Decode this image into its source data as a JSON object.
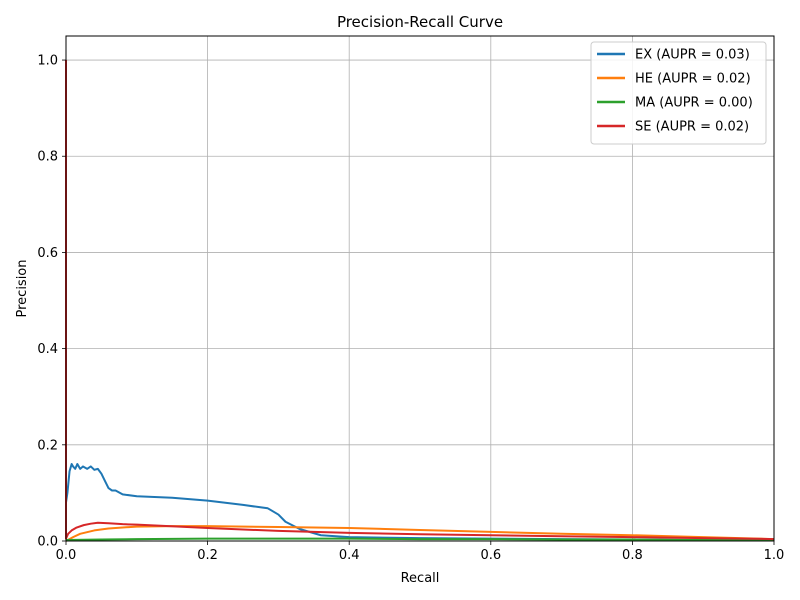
{
  "chart_data": {
    "type": "line",
    "title": "Precision-Recall Curve",
    "xlabel": "Recall",
    "ylabel": "Precision",
    "xlim": [
      0,
      1.0
    ],
    "ylim": [
      0,
      1.05
    ],
    "xticks": [
      "0.0",
      "0.2",
      "0.4",
      "0.6",
      "0.8",
      "1.0"
    ],
    "yticks": [
      "0.0",
      "0.2",
      "0.4",
      "0.6",
      "0.8",
      "1.0"
    ],
    "grid": true,
    "legend_position": "top-right",
    "series": [
      {
        "name": "EX (AUPR = 0.03)",
        "color": "#1f77b4",
        "x": [
          0,
          0,
          0.002,
          0.005,
          0.008,
          0.01,
          0.013,
          0.016,
          0.02,
          0.024,
          0.03,
          0.035,
          0.04,
          0.045,
          0.05,
          0.055,
          0.06,
          0.065,
          0.07,
          0.08,
          0.1,
          0.15,
          0.2,
          0.25,
          0.285,
          0.3,
          0.31,
          0.33,
          0.36,
          0.4,
          0.5,
          0.6,
          0.7,
          0.8,
          0.9,
          1.0
        ],
        "y": [
          1.0,
          0.08,
          0.1,
          0.145,
          0.16,
          0.155,
          0.15,
          0.16,
          0.15,
          0.155,
          0.15,
          0.155,
          0.148,
          0.15,
          0.14,
          0.125,
          0.11,
          0.105,
          0.105,
          0.097,
          0.093,
          0.09,
          0.084,
          0.075,
          0.068,
          0.055,
          0.04,
          0.025,
          0.012,
          0.008,
          0.006,
          0.005,
          0.004,
          0.003,
          0.002,
          0.002
        ]
      },
      {
        "name": "HE (AUPR = 0.02)",
        "color": "#ff7f0e",
        "x": [
          0,
          0.01,
          0.02,
          0.04,
          0.06,
          0.08,
          0.1,
          0.15,
          0.2,
          0.3,
          0.4,
          0.5,
          0.6,
          0.7,
          0.8,
          0.9,
          1.0
        ],
        "y": [
          0.0,
          0.008,
          0.015,
          0.022,
          0.026,
          0.028,
          0.03,
          0.031,
          0.031,
          0.029,
          0.027,
          0.023,
          0.019,
          0.015,
          0.012,
          0.008,
          0.004
        ]
      },
      {
        "name": "MA (AUPR = 0.00)",
        "color": "#2ca02c",
        "x": [
          0,
          0.05,
          0.1,
          0.2,
          0.3,
          0.4,
          0.5,
          0.6,
          0.7,
          0.8,
          0.9,
          1.0
        ],
        "y": [
          0.002,
          0.003,
          0.004,
          0.005,
          0.005,
          0.005,
          0.004,
          0.004,
          0.003,
          0.003,
          0.002,
          0.002
        ]
      },
      {
        "name": "SE (AUPR = 0.02)",
        "color": "#d62728",
        "x": [
          0,
          0,
          0.003,
          0.008,
          0.015,
          0.025,
          0.035,
          0.045,
          0.06,
          0.08,
          0.1,
          0.13,
          0.16,
          0.2,
          0.3,
          0.4,
          0.5,
          0.6,
          0.7,
          0.8,
          0.9,
          1.0
        ],
        "y": [
          1.0,
          0.005,
          0.015,
          0.022,
          0.028,
          0.033,
          0.036,
          0.038,
          0.037,
          0.035,
          0.034,
          0.032,
          0.03,
          0.027,
          0.021,
          0.017,
          0.014,
          0.012,
          0.01,
          0.008,
          0.006,
          0.004
        ]
      }
    ]
  }
}
